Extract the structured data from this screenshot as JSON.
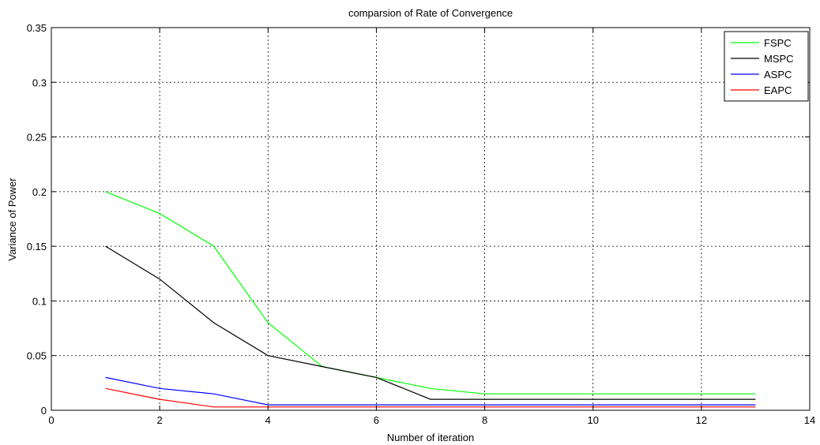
{
  "chart_data": {
    "type": "line",
    "title": "comparsion of Rate of Convergence",
    "xlabel": "Number of iteration",
    "ylabel": "Variance of Power",
    "xlim": [
      0,
      14
    ],
    "ylim": [
      0,
      0.35
    ],
    "xticks": [
      0,
      2,
      4,
      6,
      8,
      10,
      12,
      14
    ],
    "yticks": [
      0,
      0.05,
      0.1,
      0.15,
      0.2,
      0.25,
      0.3,
      0.35
    ],
    "grid": true,
    "legend_position": "top-right",
    "x": [
      1,
      2,
      3,
      4,
      5,
      6,
      7,
      8,
      9,
      10,
      11,
      12,
      13
    ],
    "series": [
      {
        "name": "FSPC",
        "color": "#00ff00",
        "values": [
          0.2,
          0.18,
          0.15,
          0.08,
          0.04,
          0.03,
          0.02,
          0.015,
          0.015,
          0.015,
          0.015,
          0.015,
          0.015
        ]
      },
      {
        "name": "MSPC",
        "color": "#000000",
        "values": [
          0.15,
          0.12,
          0.08,
          0.05,
          0.04,
          0.03,
          0.01,
          0.01,
          0.01,
          0.01,
          0.01,
          0.01,
          0.01
        ]
      },
      {
        "name": "ASPC",
        "color": "#0000ff",
        "values": [
          0.03,
          0.02,
          0.015,
          0.005,
          0.005,
          0.005,
          0.005,
          0.005,
          0.005,
          0.005,
          0.005,
          0.005,
          0.005
        ]
      },
      {
        "name": "EAPC",
        "color": "#ff0000",
        "values": [
          0.02,
          0.01,
          0.003,
          0.003,
          0.003,
          0.003,
          0.003,
          0.003,
          0.003,
          0.003,
          0.003,
          0.003,
          0.003
        ]
      }
    ]
  }
}
